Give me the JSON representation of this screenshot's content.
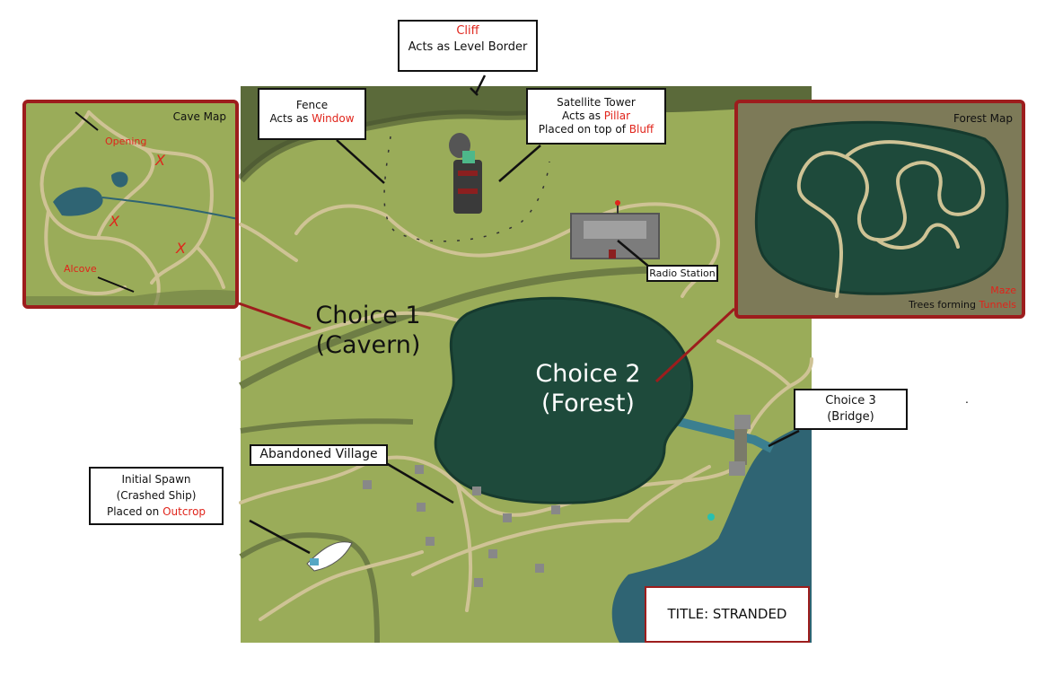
{
  "map": {
    "colors": {
      "grass": "#9aac59",
      "cliff": "#5b6a3a",
      "forest": "#1e4a3b",
      "water": "#2f6473",
      "path": "#cfc395",
      "accent_red": "#e0241b",
      "inset_border": "#9d1d1d"
    }
  },
  "labels": {
    "cliff": {
      "title": "Cliff",
      "subtitle": "Acts as Level Border"
    },
    "fence": {
      "title": "Fence",
      "prefix": "Acts as ",
      "highlight": "Window"
    },
    "satellite": {
      "title": "Satellite Tower",
      "line2_prefix": "Acts as ",
      "line2_highlight": "Pillar",
      "line3_prefix": "Placed on top of ",
      "line3_highlight": "Bluff"
    },
    "radio_station": "Radio Station",
    "choice1": {
      "line1": "Choice 1",
      "line2": "(Cavern)"
    },
    "choice2": {
      "line1": "Choice 2",
      "line2": "(Forest)"
    },
    "choice3": {
      "line1": "Choice 3",
      "line2": "(Bridge)"
    },
    "village": "Abandoned Village",
    "spawn": {
      "line1": "Initial Spawn",
      "line2": "(Crashed Ship)",
      "line3_prefix": "Placed on ",
      "line3_highlight": "Outcrop"
    },
    "title": "TITLE: STRANDED",
    "stray_dot": "."
  },
  "cave_map": {
    "title": "Cave Map",
    "opening": "Opening",
    "alcove": "Alcove",
    "marker": "X"
  },
  "forest_map": {
    "title": "Forest Map",
    "maze": "Maze",
    "trees_prefix": "Trees forming ",
    "trees_highlight": "Tunnels"
  }
}
